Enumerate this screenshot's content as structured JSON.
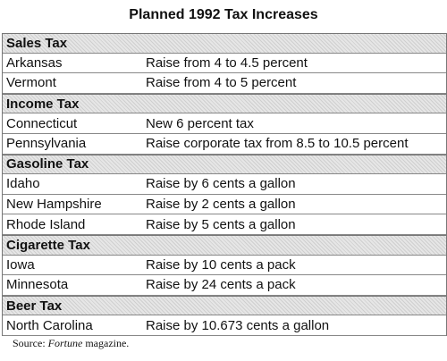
{
  "title": "Planned 1992 Tax Increases",
  "sections": [
    {
      "header": "Sales Tax",
      "rows": [
        [
          "Arkansas",
          "Raise from 4 to 4.5 percent"
        ],
        [
          "Vermont",
          "Raise from 4 to 5 percent"
        ]
      ]
    },
    {
      "header": "Income Tax",
      "rows": [
        [
          "Connecticut",
          "New 6 percent tax"
        ],
        [
          "Pennsylvania",
          "Raise corporate tax from 8.5 to 10.5 percent"
        ]
      ]
    },
    {
      "header": "Gasoline Tax",
      "rows": [
        [
          "Idaho",
          "Raise by 6 cents a gallon"
        ],
        [
          "New Hampshire",
          "Raise by 2 cents a gallon"
        ],
        [
          "Rhode Island",
          "Raise by 5 cents a gallon"
        ]
      ]
    },
    {
      "header": "Cigarette Tax",
      "rows": [
        [
          "Iowa",
          "Raise by 10 cents a pack"
        ],
        [
          "Minnesota",
          "Raise by 24 cents a pack"
        ]
      ]
    },
    {
      "header": "Beer Tax",
      "rows": [
        [
          "North Carolina",
          "Raise by 10.673 cents a gallon"
        ]
      ]
    }
  ],
  "source": {
    "label": "Source:",
    "publication": "Fortune",
    "rest": "magazine."
  }
}
